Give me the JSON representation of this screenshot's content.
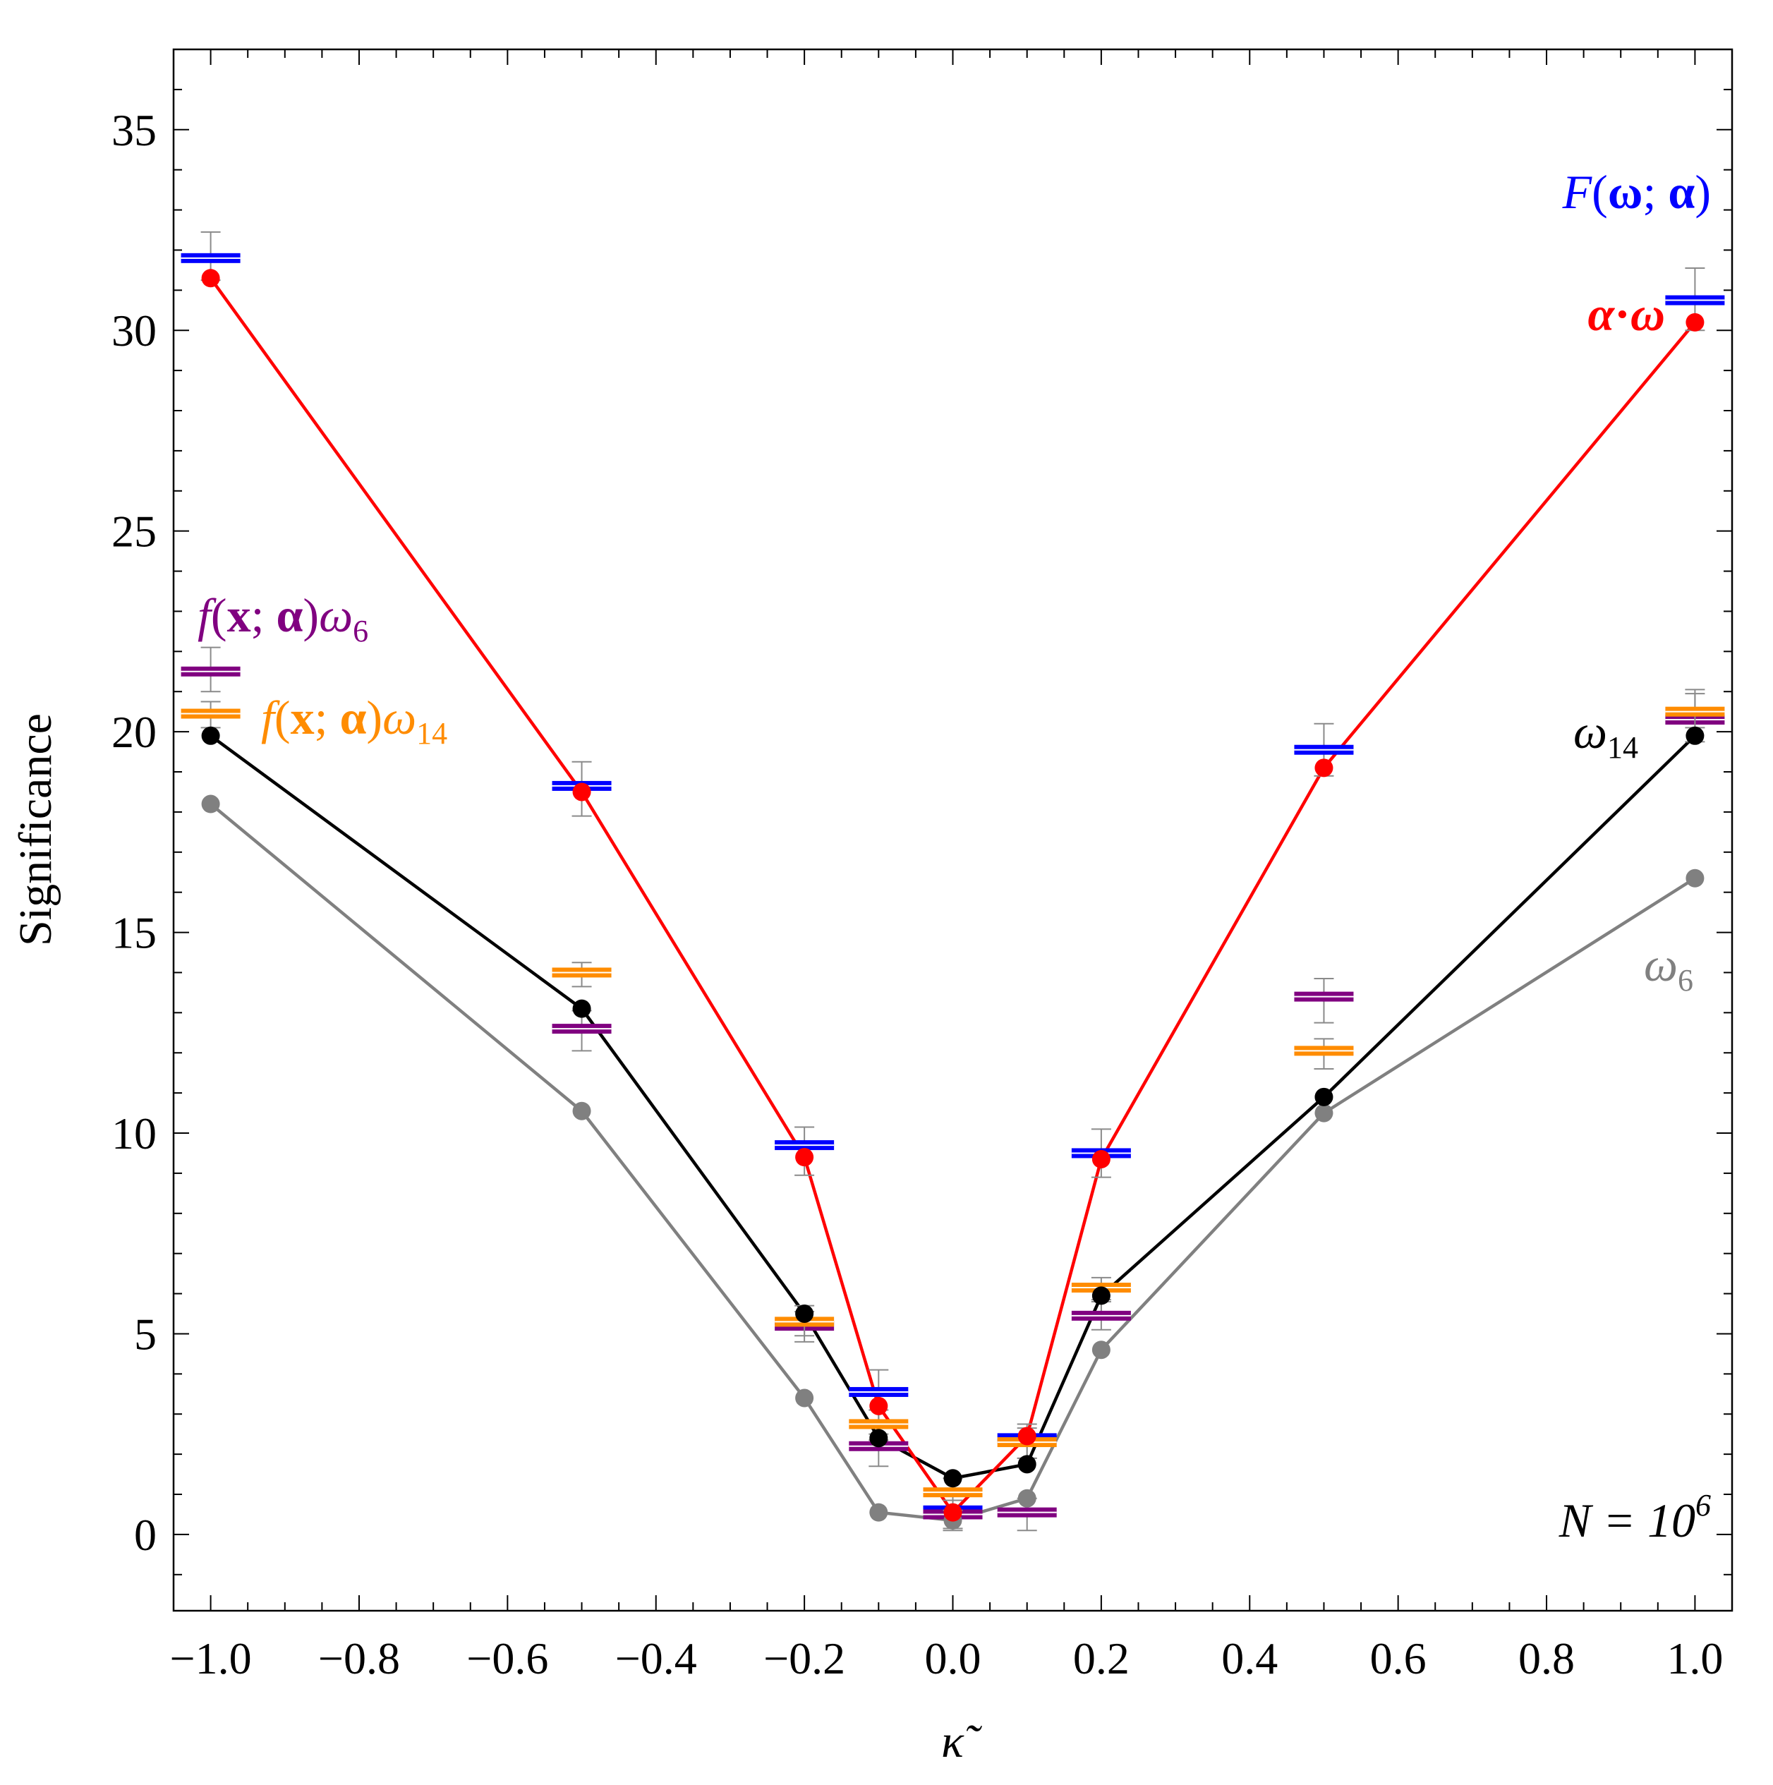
{
  "chart_data": {
    "type": "line",
    "title": "",
    "xlabel": "κ̃",
    "ylabel": "Significance",
    "xlim": [
      -1.05,
      1.05
    ],
    "ylim": [
      -1.9,
      37.0
    ],
    "x_ticks": [
      -1.0,
      -0.8,
      -0.6,
      -0.4,
      -0.2,
      0.0,
      0.2,
      0.4,
      0.6,
      0.8,
      1.0
    ],
    "x_tick_labels": [
      "−1.0",
      "−0.8",
      "−0.6",
      "−0.4",
      "−0.2",
      "0.0",
      "0.2",
      "0.4",
      "0.6",
      "0.8",
      "1.0"
    ],
    "y_ticks": [
      0,
      5,
      10,
      15,
      20,
      25,
      30,
      35
    ],
    "y_tick_labels": [
      "0",
      "5",
      "10",
      "15",
      "20",
      "25",
      "30",
      "35"
    ],
    "grid": false,
    "annotation": {
      "text": "N = 10",
      "superscript": "6",
      "position": "bottom-right"
    },
    "x": [
      -1.0,
      -0.5,
      -0.2,
      -0.1,
      0.0,
      0.1,
      0.2,
      0.5,
      1.0
    ],
    "line_series": [
      {
        "name": "α·ω",
        "color": "#ff0000",
        "values": [
          31.3,
          18.5,
          9.4,
          3.2,
          0.55,
          2.45,
          9.35,
          19.1,
          30.2
        ]
      },
      {
        "name": "ω14",
        "color": "#000000",
        "values": [
          19.9,
          13.1,
          5.5,
          2.4,
          1.4,
          1.75,
          5.95,
          10.9,
          19.9
        ]
      },
      {
        "name": "ω6",
        "color": "#808080",
        "values": [
          18.2,
          10.55,
          3.4,
          0.55,
          0.35,
          0.9,
          4.6,
          10.5,
          16.35
        ]
      }
    ],
    "box_series": [
      {
        "name": "F(ω; α)",
        "color": "#0000ff",
        "x": [
          -1.0,
          -0.5,
          -0.2,
          -0.1,
          0.0,
          0.1,
          0.2,
          0.5,
          1.0
        ],
        "values": [
          31.8,
          18.65,
          9.7,
          3.55,
          0.6,
          2.4,
          9.5,
          19.55,
          30.75
        ],
        "err_low": [
          31.25,
          17.9,
          8.95,
          2.85,
          0.15,
          1.9,
          8.9,
          18.9,
          30.0
        ],
        "err_high": [
          32.45,
          19.25,
          10.15,
          4.1,
          1.0,
          2.75,
          10.1,
          20.2,
          31.55
        ]
      },
      {
        "name": "f(x; α)ω6",
        "color": "#800080",
        "x": [
          -1.0,
          -0.5,
          -0.2,
          -0.1,
          0.0,
          0.1,
          0.2,
          0.5,
          1.0
        ],
        "values": [
          21.5,
          12.6,
          5.2,
          2.2,
          0.5,
          0.55,
          5.45,
          13.4,
          20.3
        ],
        "err_low": [
          21.0,
          12.05,
          4.8,
          1.7,
          0.1,
          0.1,
          5.1,
          12.75,
          19.75
        ],
        "err_high": [
          22.1,
          13.05,
          5.55,
          2.5,
          0.85,
          0.9,
          5.85,
          13.85,
          20.95
        ]
      },
      {
        "name": "f(x; α)ω14",
        "color": "#ff8c00",
        "x": [
          -1.0,
          -0.5,
          -0.2,
          -0.1,
          0.0,
          0.1,
          0.2,
          0.5,
          1.0
        ],
        "values": [
          20.45,
          14.0,
          5.3,
          2.75,
          1.05,
          2.3,
          6.15,
          12.05,
          20.5
        ],
        "err_low": [
          20.1,
          13.65,
          4.95,
          2.35,
          0.6,
          1.9,
          5.8,
          11.6,
          20.1
        ],
        "err_high": [
          20.75,
          14.25,
          5.7,
          3.1,
          1.4,
          2.65,
          6.4,
          12.35,
          21.05
        ]
      }
    ]
  },
  "labels": {
    "F": {
      "pre": "F",
      "paren_open": "(",
      "omega": "ω",
      "semi": "; ",
      "alpha": "α",
      "paren_close": ")"
    },
    "aw": {
      "alpha": "α",
      "dot": "·",
      "omega": "ω"
    },
    "fw6": {
      "pre": "f",
      "paren_open": "(",
      "x": "x",
      "semi": "; ",
      "alpha": "α",
      "paren_close": ")",
      "omega": "ω",
      "sub": "6"
    },
    "fw14": {
      "pre": "f",
      "paren_open": "(",
      "x": "x",
      "semi": "; ",
      "alpha": "α",
      "paren_close": ")",
      "omega": "ω",
      "sub": "14"
    },
    "w14": {
      "omega": "ω",
      "sub": "14"
    },
    "w6": {
      "omega": "ω",
      "sub": "6"
    }
  }
}
